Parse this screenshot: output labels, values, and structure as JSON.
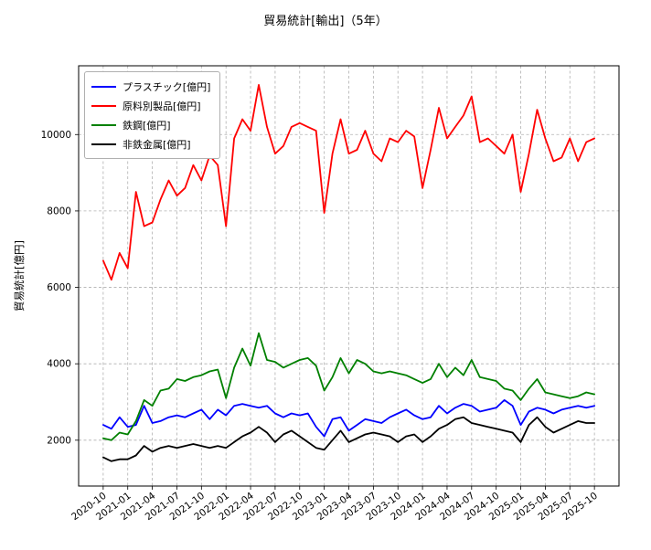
{
  "chart": {
    "title": "貿易統計[輸出]（5年）",
    "ylabel": "貿易統計[億円]"
  },
  "chart_data": {
    "type": "line",
    "title": "貿易統計[輸出]（5年）",
    "xlabel": "",
    "ylabel": "貿易統計[億円]",
    "grid": true,
    "legend_position": "upper left",
    "ylim": [
      800,
      11800
    ],
    "yticks": [
      2000,
      4000,
      6000,
      8000,
      10000
    ],
    "tick_every": 3,
    "categories": [
      "2020-10",
      "2020-11",
      "2020-12",
      "2021-01",
      "2021-02",
      "2021-03",
      "2021-04",
      "2021-05",
      "2021-06",
      "2021-07",
      "2021-08",
      "2021-09",
      "2021-10",
      "2021-11",
      "2021-12",
      "2022-01",
      "2022-02",
      "2022-03",
      "2022-04",
      "2022-05",
      "2022-06",
      "2022-07",
      "2022-08",
      "2022-09",
      "2022-10",
      "2022-11",
      "2022-12",
      "2023-01",
      "2023-02",
      "2023-03",
      "2023-04",
      "2023-05",
      "2023-06",
      "2023-07",
      "2023-08",
      "2023-09",
      "2023-10",
      "2023-11",
      "2023-12",
      "2024-01",
      "2024-02",
      "2024-03",
      "2024-04",
      "2024-05",
      "2024-06",
      "2024-07",
      "2024-08",
      "2024-09",
      "2024-10",
      "2024-11",
      "2024-12",
      "2025-01",
      "2025-02",
      "2025-03",
      "2025-04",
      "2025-05",
      "2025-06",
      "2025-07",
      "2025-08",
      "2025-09",
      "2025-10"
    ],
    "series": [
      {
        "id": "plastic",
        "name": "プラスチック[億円]",
        "color": "#0000ff",
        "values": [
          2400,
          2300,
          2600,
          2350,
          2400,
          2900,
          2450,
          2500,
          2600,
          2650,
          2600,
          2700,
          2800,
          2550,
          2800,
          2650,
          2900,
          2950,
          2900,
          2850,
          2900,
          2700,
          2600,
          2700,
          2650,
          2700,
          2350,
          2100,
          2550,
          2600,
          2250,
          2400,
          2550,
          2500,
          2450,
          2600,
          2700,
          2800,
          2650,
          2550,
          2600,
          2900,
          2700,
          2850,
          2950,
          2900,
          2750,
          2800,
          2850,
          3050,
          2900,
          2400,
          2750,
          2850,
          2800,
          2700,
          2800,
          2850,
          2900,
          2850,
          2900
        ]
      },
      {
        "id": "raw-material-products",
        "name": "原料別製品[億円]",
        "color": "#ff0000",
        "values": [
          6700,
          6200,
          6900,
          6500,
          8500,
          7600,
          7700,
          8300,
          8800,
          8400,
          8600,
          9200,
          8800,
          9450,
          9200,
          7600,
          9900,
          10400,
          10100,
          11300,
          10200,
          9500,
          9700,
          10200,
          10300,
          10200,
          10100,
          7950,
          9500,
          10400,
          9500,
          9600,
          10100,
          9500,
          9300,
          9900,
          9800,
          10100,
          9950,
          8600,
          9600,
          10700,
          9900,
          10200,
          10500,
          11000,
          9800,
          9900,
          9700,
          9500,
          10000,
          8500,
          9500,
          10650,
          9900,
          9300,
          9400,
          9900,
          9300,
          9800,
          9900
        ]
      },
      {
        "id": "steel",
        "name": "鉄鋼[億円]",
        "color": "#008000",
        "values": [
          2050,
          2000,
          2200,
          2150,
          2500,
          3050,
          2900,
          3300,
          3350,
          3600,
          3550,
          3650,
          3700,
          3800,
          3850,
          3100,
          3900,
          4400,
          3950,
          4800,
          4100,
          4050,
          3900,
          4000,
          4100,
          4150,
          3950,
          3300,
          3650,
          4150,
          3750,
          4100,
          4000,
          3800,
          3750,
          3800,
          3750,
          3700,
          3600,
          3500,
          3600,
          4000,
          3650,
          3900,
          3700,
          4100,
          3650,
          3600,
          3550,
          3350,
          3300,
          3050,
          3350,
          3600,
          3250,
          3200,
          3150,
          3100,
          3150,
          3250,
          3200
        ]
      },
      {
        "id": "nonferrous-metals",
        "name": "非鉄金属[億円]",
        "color": "#000000",
        "values": [
          1550,
          1450,
          1500,
          1500,
          1600,
          1850,
          1700,
          1800,
          1850,
          1800,
          1850,
          1900,
          1850,
          1800,
          1850,
          1800,
          1950,
          2100,
          2200,
          2350,
          2200,
          1950,
          2150,
          2250,
          2100,
          1950,
          1800,
          1750,
          2000,
          2250,
          1950,
          2050,
          2150,
          2200,
          2150,
          2100,
          1950,
          2100,
          2150,
          1950,
          2100,
          2300,
          2400,
          2550,
          2600,
          2450,
          2400,
          2350,
          2300,
          2250,
          2200,
          1950,
          2400,
          2600,
          2350,
          2200,
          2300,
          2400,
          2500,
          2450,
          2450
        ]
      }
    ]
  }
}
